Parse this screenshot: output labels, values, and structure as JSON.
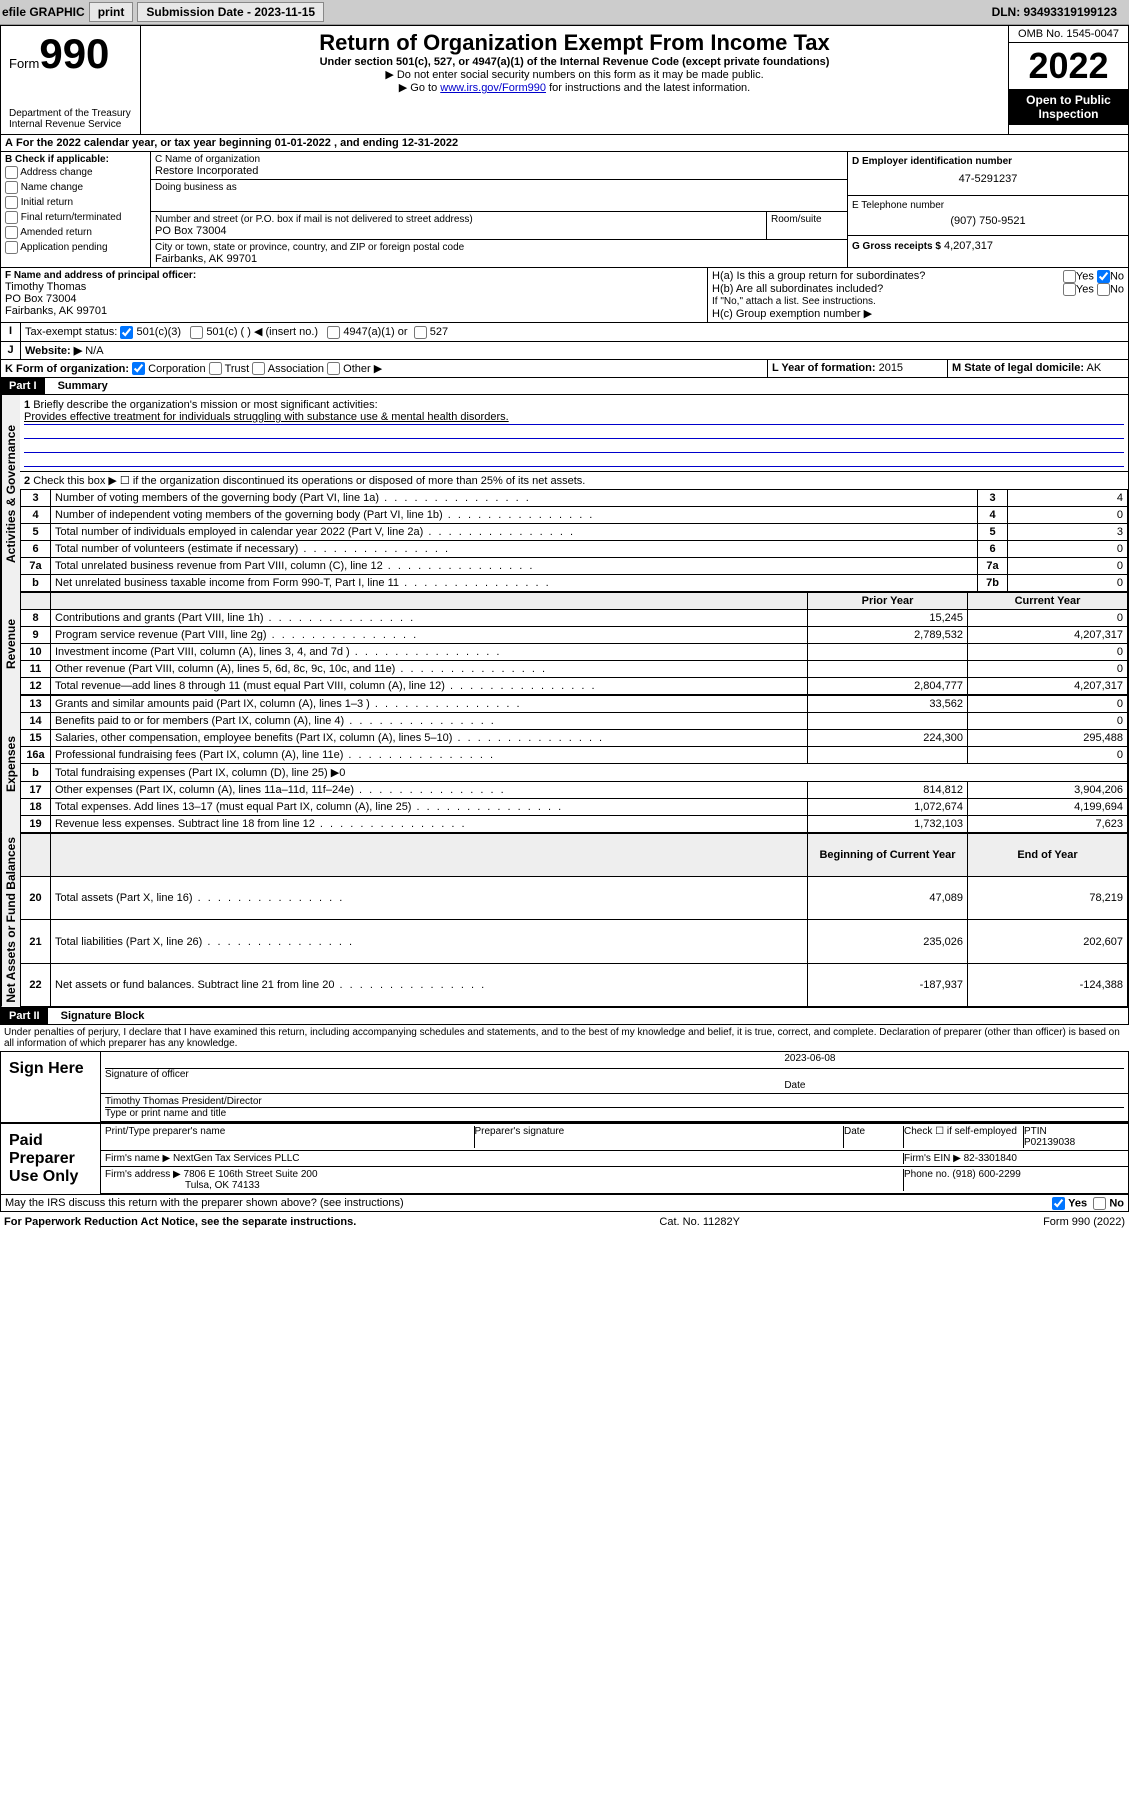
{
  "toolbar": {
    "efile": "efile GRAPHIC",
    "print": "print",
    "sub_label": "Submission Date - 2023-11-15",
    "dln": "DLN: 93493319199123"
  },
  "header": {
    "form_word": "Form",
    "form_num": "990",
    "dept": "Department of the Treasury",
    "service": "Internal Revenue Service",
    "title": "Return of Organization Exempt From Income Tax",
    "subtitle": "Under section 501(c), 527, or 4947(a)(1) of the Internal Revenue Code (except private foundations)",
    "note1": "▶ Do not enter social security numbers on this form as it may be made public.",
    "note2_pre": "▶ Go to ",
    "note2_link": "www.irs.gov/Form990",
    "note2_post": " for instructions and the latest information.",
    "omb": "OMB No. 1545-0047",
    "year": "2022",
    "open": "Open to Public Inspection"
  },
  "periodA": {
    "text": "For the 2022 calendar year, or tax year beginning ",
    "begin": "01-01-2022",
    "mid": " , and ending ",
    "end": "12-31-2022"
  },
  "boxB": {
    "header": "B Check if applicable:",
    "opts": [
      "Address change",
      "Name change",
      "Initial return",
      "Final return/terminated",
      "Amended return",
      "Application pending"
    ]
  },
  "boxC": {
    "label": "C Name of organization",
    "name": "Restore Incorporated",
    "dba_label": "Doing business as",
    "addr_label": "Number and street (or P.O. box if mail is not delivered to street address)",
    "room_label": "Room/suite",
    "addr": "PO Box 73004",
    "city_label": "City or town, state or province, country, and ZIP or foreign postal code",
    "city": "Fairbanks, AK  99701"
  },
  "boxD": {
    "label": "D Employer identification number",
    "value": "47-5291237"
  },
  "boxE": {
    "label": "E Telephone number",
    "value": "(907) 750-9521"
  },
  "boxG": {
    "label": "G Gross receipts $",
    "value": "4,207,317"
  },
  "boxF": {
    "label": "F Name and address of principal officer:",
    "name": "Timothy Thomas",
    "addr1": "PO Box 73004",
    "addr2": "Fairbanks, AK  99701"
  },
  "boxH": {
    "a": "H(a)  Is this a group return for subordinates?",
    "b": "H(b)  Are all subordinates included?",
    "note": "If \"No,\" attach a list. See instructions.",
    "c": "H(c)  Group exemption number ▶",
    "yes": "Yes",
    "no": "No"
  },
  "boxI": {
    "label": "Tax-exempt status:",
    "a": "501(c)(3)",
    "b": "501(c) (  ) ◀ (insert no.)",
    "c": "4947(a)(1) or",
    "d": "527"
  },
  "boxJ": {
    "label": "Website: ▶",
    "value": "N/A"
  },
  "boxK": {
    "label": "K Form of organization:",
    "a": "Corporation",
    "b": "Trust",
    "c": "Association",
    "d": "Other ▶"
  },
  "boxL": {
    "label": "L Year of formation:",
    "value": "2015"
  },
  "boxM": {
    "label": "M State of legal domicile:",
    "value": "AK"
  },
  "part1": {
    "header": "Part I",
    "title": "Summary",
    "q1": "Briefly describe the organization's mission or most significant activities:",
    "mission": "Provides effective treatment for individuals struggling with substance use & mental health disorders.",
    "q2": "Check this box ▶ ☐  if the organization discontinued its operations or disposed of more than 25% of its net assets.",
    "lines_ag": [
      {
        "n": "3",
        "t": "Number of voting members of the governing body (Part VI, line 1a)",
        "box": "3",
        "v": "4"
      },
      {
        "n": "4",
        "t": "Number of independent voting members of the governing body (Part VI, line 1b)",
        "box": "4",
        "v": "0"
      },
      {
        "n": "5",
        "t": "Total number of individuals employed in calendar year 2022 (Part V, line 2a)",
        "box": "5",
        "v": "3"
      },
      {
        "n": "6",
        "t": "Total number of volunteers (estimate if necessary)",
        "box": "6",
        "v": "0"
      },
      {
        "n": "7a",
        "t": "Total unrelated business revenue from Part VIII, column (C), line 12",
        "box": "7a",
        "v": "0"
      },
      {
        "n": "b",
        "t": "Net unrelated business taxable income from Form 990-T, Part I, line 11",
        "box": "7b",
        "v": "0"
      }
    ],
    "col_prior": "Prior Year",
    "col_current": "Current Year",
    "revenue": [
      {
        "n": "8",
        "t": "Contributions and grants (Part VIII, line 1h)",
        "p": "15,245",
        "c": "0"
      },
      {
        "n": "9",
        "t": "Program service revenue (Part VIII, line 2g)",
        "p": "2,789,532",
        "c": "4,207,317"
      },
      {
        "n": "10",
        "t": "Investment income (Part VIII, column (A), lines 3, 4, and 7d )",
        "p": "",
        "c": "0"
      },
      {
        "n": "11",
        "t": "Other revenue (Part VIII, column (A), lines 5, 6d, 8c, 9c, 10c, and 11e)",
        "p": "",
        "c": "0"
      },
      {
        "n": "12",
        "t": "Total revenue—add lines 8 through 11 (must equal Part VIII, column (A), line 12)",
        "p": "2,804,777",
        "c": "4,207,317"
      }
    ],
    "expenses": [
      {
        "n": "13",
        "t": "Grants and similar amounts paid (Part IX, column (A), lines 1–3 )",
        "p": "33,562",
        "c": "0"
      },
      {
        "n": "14",
        "t": "Benefits paid to or for members (Part IX, column (A), line 4)",
        "p": "",
        "c": "0"
      },
      {
        "n": "15",
        "t": "Salaries, other compensation, employee benefits (Part IX, column (A), lines 5–10)",
        "p": "224,300",
        "c": "295,488"
      },
      {
        "n": "16a",
        "t": "Professional fundraising fees (Part IX, column (A), line 11e)",
        "p": "",
        "c": "0"
      },
      {
        "n": "b",
        "t": "Total fundraising expenses (Part IX, column (D), line 25) ▶0",
        "p": null,
        "c": null
      },
      {
        "n": "17",
        "t": "Other expenses (Part IX, column (A), lines 11a–11d, 11f–24e)",
        "p": "814,812",
        "c": "3,904,206"
      },
      {
        "n": "18",
        "t": "Total expenses. Add lines 13–17 (must equal Part IX, column (A), line 25)",
        "p": "1,072,674",
        "c": "4,199,694"
      },
      {
        "n": "19",
        "t": "Revenue less expenses. Subtract line 18 from line 12",
        "p": "1,732,103",
        "c": "7,623"
      }
    ],
    "col_begin": "Beginning of Current Year",
    "col_end": "End of Year",
    "netassets": [
      {
        "n": "20",
        "t": "Total assets (Part X, line 16)",
        "p": "47,089",
        "c": "78,219"
      },
      {
        "n": "21",
        "t": "Total liabilities (Part X, line 26)",
        "p": "235,026",
        "c": "202,607"
      },
      {
        "n": "22",
        "t": "Net assets or fund balances. Subtract line 21 from line 20",
        "p": "-187,937",
        "c": "-124,388"
      }
    ],
    "tabs": {
      "ag": "Activities & Governance",
      "rev": "Revenue",
      "exp": "Expenses",
      "net": "Net Assets or Fund Balances"
    }
  },
  "part2": {
    "header": "Part II",
    "title": "Signature Block",
    "decl": "Under penalties of perjury, I declare that I have examined this return, including accompanying schedules and statements, and to the best of my knowledge and belief, it is true, correct, and complete. Declaration of preparer (other than officer) is based on all information of which preparer has any knowledge.",
    "sign_here": "Sign Here",
    "sig_officer": "Signature of officer",
    "date_label": "Date",
    "date": "2023-06-08",
    "name_title": "Timothy Thomas  President/Director",
    "name_title_label": "Type or print name and title",
    "paid": "Paid Preparer Use Only",
    "prep_name_label": "Print/Type preparer's name",
    "prep_sig_label": "Preparer's signature",
    "check_self": "Check ☐ if self-employed",
    "ptin_label": "PTIN",
    "ptin": "P02139038",
    "firm_name_label": "Firm's name    ▶",
    "firm_name": "NextGen Tax Services PLLC",
    "firm_ein_label": "Firm's EIN ▶",
    "firm_ein": "82-3301840",
    "firm_addr_label": "Firm's address ▶",
    "firm_addr1": "7806 E 106th Street Suite 200",
    "firm_addr2": "Tulsa, OK  74133",
    "phone_label": "Phone no.",
    "phone": "(918) 600-2299",
    "may_discuss": "May the IRS discuss this return with the preparer shown above? (see instructions)",
    "yes": "Yes",
    "no": "No"
  },
  "footer": {
    "left": "For Paperwork Reduction Act Notice, see the separate instructions.",
    "mid": "Cat. No. 11282Y",
    "right": "Form 990 (2022)"
  }
}
